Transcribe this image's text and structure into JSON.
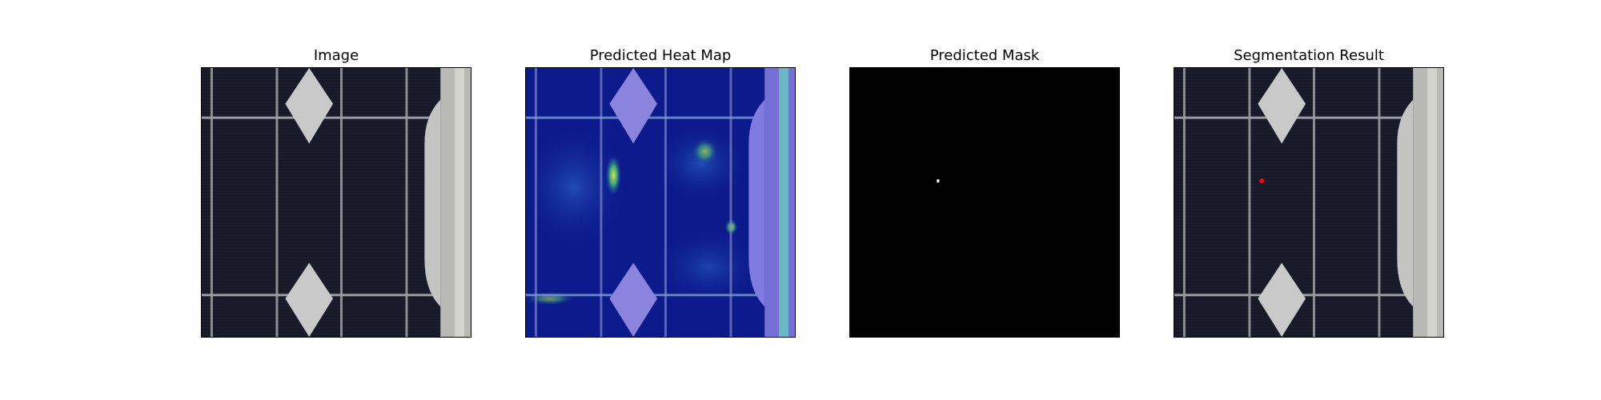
{
  "figure": {
    "panels": [
      {
        "title": "Image"
      },
      {
        "title": "Predicted Heat Map"
      },
      {
        "title": "Predicted Mask"
      },
      {
        "title": "Segmentation Result"
      }
    ]
  }
}
